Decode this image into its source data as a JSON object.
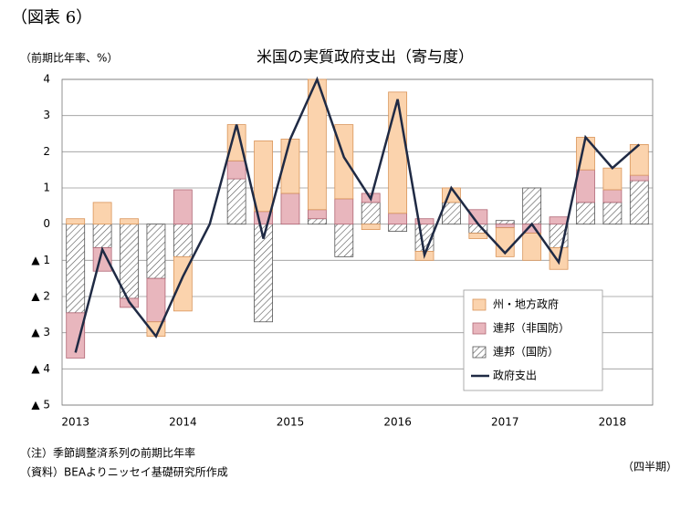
{
  "header": "（図表 6）",
  "notes": [
    "（注）季節調整済系列の前期比年率",
    "（資料）BEAよりニッセイ基礎研究所作成"
  ],
  "chart_data": {
    "type": "bar",
    "title": "米国の実質政府支出（寄与度）",
    "y_label": "（前期比年率、%）",
    "x_label": "（四半期）",
    "categories": [
      "2013",
      null,
      null,
      null,
      "2014",
      null,
      null,
      null,
      "2015",
      null,
      null,
      null,
      "2016",
      null,
      null,
      null,
      "2017",
      null,
      null,
      null,
      "2018",
      null
    ],
    "series": [
      {
        "name": "州・地方政府",
        "type": "bar",
        "color": "#fbd3ad",
        "stroke": "#d9955a",
        "values": [
          0.15,
          0.6,
          0.15,
          -0.4,
          -1.5,
          0,
          1.0,
          1.95,
          1.5,
          3.6,
          2.05,
          -0.15,
          3.35,
          -0.25,
          0.4,
          -0.15,
          -0.8,
          -0.75,
          -0.6,
          0.9,
          0.6,
          0.85
        ]
      },
      {
        "name": "連邦（非国防）",
        "type": "bar",
        "color": "#e8b6bd",
        "stroke": "#b06674",
        "values": [
          -1.25,
          -0.65,
          -0.25,
          -1.2,
          0.95,
          0,
          0.5,
          0.35,
          0.85,
          0.25,
          0.7,
          0.25,
          0.3,
          0.15,
          0,
          0.4,
          -0.1,
          -0.25,
          0.2,
          0.9,
          0.35,
          0.15
        ]
      },
      {
        "name": "連邦（国防）",
        "type": "bar",
        "color": "hatch",
        "stroke": "#555555",
        "values": [
          -2.45,
          -0.65,
          -2.05,
          -1.5,
          -0.9,
          0,
          1.25,
          -2.7,
          0,
          0.15,
          -0.9,
          0.6,
          -0.2,
          -0.75,
          0.6,
          -0.25,
          0.1,
          1.0,
          -0.65,
          0.6,
          0.6,
          1.2
        ]
      },
      {
        "name": "政府支出",
        "type": "line",
        "color": "#1f2a44",
        "values": [
          -3.55,
          -0.7,
          -2.15,
          -3.1,
          -1.45,
          0,
          2.75,
          -0.4,
          2.35,
          4.0,
          1.85,
          0.7,
          3.45,
          -0.85,
          1.0,
          0,
          -0.8,
          0,
          -1.05,
          2.4,
          1.55,
          2.2
        ]
      }
    ],
    "ylim": [
      -5,
      4
    ],
    "yticks": [
      4,
      3,
      2,
      1,
      0,
      {
        "value": -1,
        "label": "▲ 1"
      },
      {
        "value": -2,
        "label": "▲ 2"
      },
      {
        "value": -3,
        "label": "▲ 3"
      },
      {
        "value": -4,
        "label": "▲ 4"
      },
      {
        "value": -5,
        "label": "▲ 5"
      }
    ],
    "grid": true,
    "legend": "lower right"
  }
}
